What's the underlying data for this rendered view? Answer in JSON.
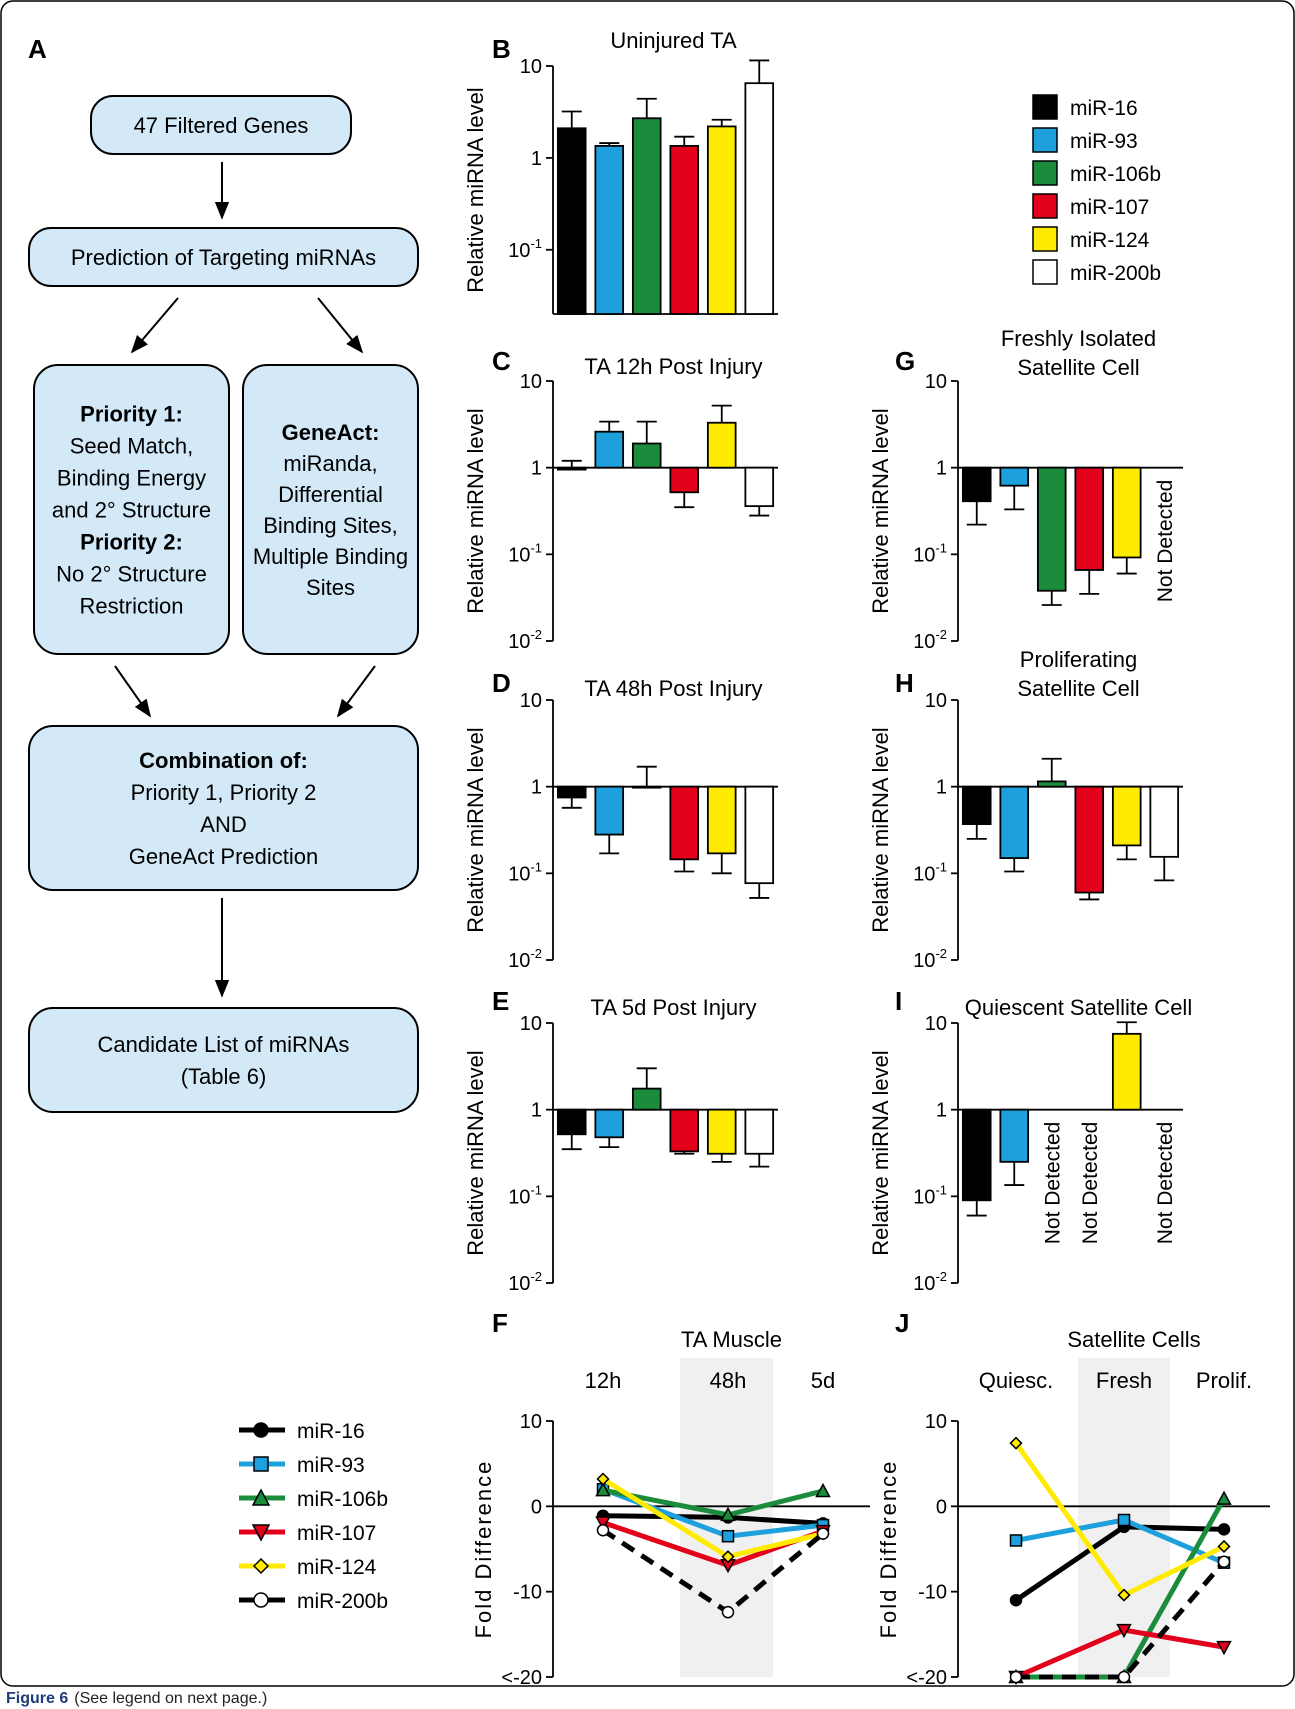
{
  "caption": {
    "label": "Figure 6",
    "text": "(See legend on next page.)"
  },
  "panel_letters": [
    "A",
    "B",
    "C",
    "D",
    "E",
    "F",
    "G",
    "H",
    "I",
    "J"
  ],
  "flowchart": {
    "boxes": [
      {
        "id": "filtered",
        "lines": [
          {
            "t": "47 Filtered Genes",
            "b": false
          }
        ]
      },
      {
        "id": "prediction",
        "lines": [
          {
            "t": "Prediction of Targeting miRNAs",
            "b": false
          }
        ]
      },
      {
        "id": "priority",
        "lines": [
          {
            "t": "Priority 1:",
            "b": true
          },
          {
            "t": "Seed Match,",
            "b": false
          },
          {
            "t": "Binding Energy",
            "b": false
          },
          {
            "t": "and 2° Structure",
            "b": false
          },
          {
            "t": "Priority 2:",
            "b": true
          },
          {
            "t": "No 2° Structure",
            "b": false
          },
          {
            "t": "Restriction",
            "b": false
          }
        ]
      },
      {
        "id": "geneact",
        "lines": [
          {
            "t": "GeneAct:",
            "b": true
          },
          {
            "t": "miRanda,",
            "b": false
          },
          {
            "t": "Differential",
            "b": false
          },
          {
            "t": "Binding Sites,",
            "b": false
          },
          {
            "t": "Multiple Binding",
            "b": false
          },
          {
            "t": "Sites",
            "b": false
          }
        ]
      },
      {
        "id": "combination",
        "lines": [
          {
            "t": "Combination of:",
            "b": true
          },
          {
            "t": "Priority 1, Priority 2",
            "b": false
          },
          {
            "t": "AND",
            "b": false
          },
          {
            "t": "GeneAct Prediction",
            "b": false
          }
        ]
      },
      {
        "id": "candidate",
        "lines": [
          {
            "t": "Candidate List of miRNAs",
            "b": false
          },
          {
            "t": "(Table 6)",
            "b": false
          }
        ]
      }
    ]
  },
  "legend_bar": [
    {
      "name": "miR-16",
      "color": "#000000"
    },
    {
      "name": "miR-93",
      "color": "#1ea0dc"
    },
    {
      "name": "miR-106b",
      "color": "#1a8c3c"
    },
    {
      "name": "miR-107",
      "color": "#e2001a"
    },
    {
      "name": "miR-124",
      "color": "#ffeb00"
    },
    {
      "name": "miR-200b",
      "color": "#ffffff"
    }
  ],
  "legend_line": [
    {
      "name": "miR-16",
      "color": "#000000",
      "marker": "circle",
      "fill": "#000000"
    },
    {
      "name": "miR-93",
      "color": "#1ea0dc",
      "marker": "square",
      "fill": "#1ea0dc"
    },
    {
      "name": "miR-106b",
      "color": "#1a8c3c",
      "marker": "triangle-up",
      "fill": "#1a8c3c"
    },
    {
      "name": "miR-107",
      "color": "#e2001a",
      "marker": "triangle-down",
      "fill": "#e2001a"
    },
    {
      "name": "miR-124",
      "color": "#ffeb00",
      "marker": "diamond",
      "fill": "#ffeb00"
    },
    {
      "name": "miR-200b",
      "color": "#000000",
      "marker": "circle",
      "fill": "#ffffff"
    }
  ],
  "chart_data": [
    {
      "panel": "B",
      "type": "bar",
      "title": "Uninjured TA",
      "ylabel": "Relative miRNA level",
      "yscale": "log",
      "ylim": [
        0.02,
        10
      ],
      "yticks": [
        {
          "v": 10,
          "label": "10"
        },
        {
          "v": 1,
          "label": "1"
        },
        {
          "v": 0.1,
          "label": "10-1"
        }
      ],
      "categories": [
        "miR-16",
        "miR-93",
        "miR-106b",
        "miR-107",
        "miR-124",
        "miR-200b"
      ],
      "values": [
        2.1,
        1.35,
        2.7,
        1.35,
        2.2,
        6.5
      ],
      "error": [
        3.2,
        1.45,
        4.4,
        1.7,
        2.6,
        11.5
      ],
      "not_detected": []
    },
    {
      "panel": "C",
      "type": "bar",
      "title": "TA 12h Post Injury",
      "ylabel": "Relative miRNA level",
      "yscale": "log",
      "ylim": [
        0.01,
        10
      ],
      "yticks": [
        {
          "v": 10,
          "label": "10"
        },
        {
          "v": 1,
          "label": "1"
        },
        {
          "v": 0.1,
          "label": "10-1"
        },
        {
          "v": 0.01,
          "label": "10-2"
        }
      ],
      "categories": [
        "miR-16",
        "miR-93",
        "miR-106b",
        "miR-107",
        "miR-124",
        "miR-200b"
      ],
      "values": [
        0.95,
        2.6,
        1.9,
        0.52,
        3.3,
        0.36
      ],
      "error": [
        1.2,
        3.4,
        3.4,
        0.35,
        5.2,
        0.28
      ],
      "not_detected": []
    },
    {
      "panel": "D",
      "type": "bar",
      "title": "TA 48h Post Injury",
      "ylabel": "Relative miRNA level",
      "yscale": "log",
      "ylim": [
        0.01,
        10
      ],
      "yticks": [
        {
          "v": 10,
          "label": "10"
        },
        {
          "v": 1,
          "label": "1"
        },
        {
          "v": 0.1,
          "label": "10-1"
        },
        {
          "v": 0.01,
          "label": "10-2"
        }
      ],
      "categories": [
        "miR-16",
        "miR-93",
        "miR-106b",
        "miR-107",
        "miR-124",
        "miR-200b"
      ],
      "values": [
        0.75,
        0.28,
        1.0,
        0.145,
        0.17,
        0.077
      ],
      "error": [
        0.57,
        0.17,
        1.7,
        0.105,
        0.1,
        0.052
      ],
      "not_detected": []
    },
    {
      "panel": "E",
      "type": "bar",
      "title": "TA 5d Post Injury",
      "ylabel": "Relative miRNA level",
      "yscale": "log",
      "ylim": [
        0.01,
        10
      ],
      "yticks": [
        {
          "v": 10,
          "label": "10"
        },
        {
          "v": 1,
          "label": "1"
        },
        {
          "v": 0.1,
          "label": "10-1"
        },
        {
          "v": 0.01,
          "label": "10-2"
        }
      ],
      "categories": [
        "miR-16",
        "miR-93",
        "miR-106b",
        "miR-107",
        "miR-124",
        "miR-200b"
      ],
      "values": [
        0.52,
        0.48,
        1.75,
        0.33,
        0.31,
        0.31
      ],
      "error": [
        0.35,
        0.37,
        3.0,
        0.31,
        0.25,
        0.22
      ],
      "not_detected": []
    },
    {
      "panel": "G",
      "type": "bar",
      "title": "Freshly Isolated\nSatellite Cell",
      "ylabel": "Relative miRNA level",
      "yscale": "log",
      "ylim": [
        0.01,
        10
      ],
      "yticks": [
        {
          "v": 10,
          "label": "10"
        },
        {
          "v": 1,
          "label": "1"
        },
        {
          "v": 0.1,
          "label": "10-1"
        },
        {
          "v": 0.01,
          "label": "10-2"
        }
      ],
      "categories": [
        "miR-16",
        "miR-93",
        "miR-106b",
        "miR-107",
        "miR-124",
        "miR-200b"
      ],
      "values": [
        0.41,
        0.62,
        0.038,
        0.066,
        0.092,
        null
      ],
      "error": [
        0.22,
        0.33,
        0.026,
        0.035,
        0.06,
        null
      ],
      "not_detected": [
        5
      ]
    },
    {
      "panel": "H",
      "type": "bar",
      "title": "Proliferating\nSatellite Cell",
      "ylabel": "Relative miRNA level",
      "yscale": "log",
      "ylim": [
        0.01,
        10
      ],
      "yticks": [
        {
          "v": 10,
          "label": "10"
        },
        {
          "v": 1,
          "label": "1"
        },
        {
          "v": 0.1,
          "label": "10-1"
        },
        {
          "v": 0.01,
          "label": "10-2"
        }
      ],
      "categories": [
        "miR-16",
        "miR-93",
        "miR-106b",
        "miR-107",
        "miR-124",
        "miR-200b"
      ],
      "values": [
        0.37,
        0.15,
        1.15,
        0.06,
        0.21,
        0.155
      ],
      "error": [
        0.25,
        0.105,
        2.1,
        0.05,
        0.145,
        0.083
      ],
      "not_detected": []
    },
    {
      "panel": "I",
      "type": "bar",
      "title": "Quiescent Satellite Cell",
      "ylabel": "Relative miRNA level",
      "yscale": "log",
      "ylim": [
        0.01,
        10
      ],
      "yticks": [
        {
          "v": 10,
          "label": "10"
        },
        {
          "v": 1,
          "label": "1"
        },
        {
          "v": 0.1,
          "label": "10-1"
        },
        {
          "v": 0.01,
          "label": "10-2"
        }
      ],
      "categories": [
        "miR-16",
        "miR-93",
        "miR-106b",
        "miR-107",
        "miR-124",
        "miR-200b"
      ],
      "values": [
        0.09,
        0.25,
        null,
        null,
        7.5,
        null
      ],
      "error": [
        0.06,
        0.135,
        null,
        null,
        10.2,
        null
      ],
      "not_detected": [
        2,
        3,
        5
      ]
    },
    {
      "panel": "F",
      "type": "line",
      "title": "TA Muscle",
      "ylabel": "Fold Difference",
      "ylim": [
        -20,
        10
      ],
      "yticks": [
        {
          "v": 10,
          "label": "10"
        },
        {
          "v": 0,
          "label": "0"
        },
        {
          "v": -10,
          "label": "-10"
        },
        {
          "v": -20,
          "label": "<-20"
        }
      ],
      "x": [
        "12h",
        "48h",
        "5d"
      ],
      "shaded": 1,
      "series": [
        {
          "name": "miR-16",
          "values": [
            -1.1,
            -1.3,
            -2.0
          ]
        },
        {
          "name": "miR-93",
          "values": [
            2.0,
            -3.5,
            -2.2
          ]
        },
        {
          "name": "miR-106b",
          "values": [
            1.9,
            -1.0,
            1.8
          ]
        },
        {
          "name": "miR-107",
          "values": [
            -1.9,
            -6.9,
            -2.9
          ]
        },
        {
          "name": "miR-124",
          "values": [
            3.2,
            -5.9,
            -3.2
          ]
        },
        {
          "name": "miR-200b",
          "values": [
            -2.8,
            -12.4,
            -3.2
          ]
        }
      ]
    },
    {
      "panel": "J",
      "type": "line",
      "title": "Satellite  Cells",
      "ylabel": "Fold Difference",
      "ylim": [
        -20,
        10
      ],
      "yticks": [
        {
          "v": 10,
          "label": "10"
        },
        {
          "v": 0,
          "label": "0"
        },
        {
          "v": -10,
          "label": "-10"
        },
        {
          "v": -20,
          "label": "<-20"
        }
      ],
      "x": [
        "Quiesc.",
        "Fresh",
        "Prolif."
      ],
      "shaded": 1,
      "series": [
        {
          "name": "miR-16",
          "values": [
            -11.0,
            -2.4,
            -2.7
          ]
        },
        {
          "name": "miR-93",
          "values": [
            -4.0,
            -1.6,
            -6.6
          ]
        },
        {
          "name": "miR-106b",
          "values": [
            -20.0,
            -20.0,
            0.9
          ]
        },
        {
          "name": "miR-107",
          "values": [
            -20.0,
            -14.5,
            -16.5
          ]
        },
        {
          "name": "miR-124",
          "values": [
            7.4,
            -10.4,
            -4.7
          ]
        },
        {
          "name": "miR-200b",
          "values": [
            -20.0,
            -20.0,
            -6.5
          ]
        }
      ]
    }
  ]
}
